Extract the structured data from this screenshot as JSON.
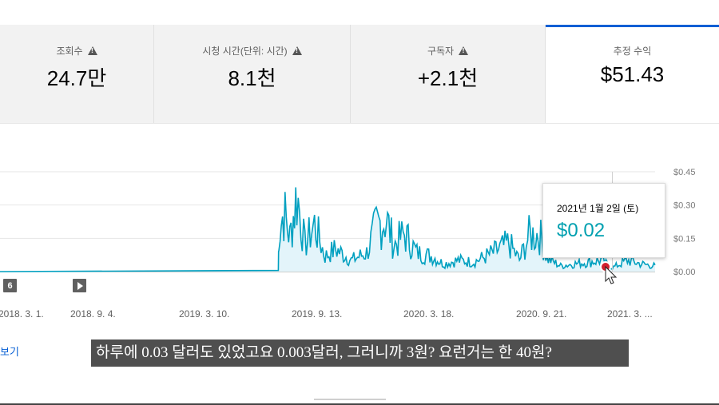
{
  "metrics": [
    {
      "label": "조회수",
      "value": "24.7만",
      "warning": true
    },
    {
      "label": "시청 시간(단위: 시간)",
      "value": "8.1천",
      "warning": true
    },
    {
      "label": "구독자",
      "value": "+2.1천",
      "warning": true
    },
    {
      "label": "추정 수익",
      "value": "$51.43",
      "warning": false,
      "selected": true
    }
  ],
  "tooltip": {
    "date": "2021년 1월 2일 (토)",
    "value": "$0.02"
  },
  "chart_controls": {
    "badge": "6"
  },
  "see_more": "보기",
  "subtitle": "하루에 0.03 달러도 있었고요 0.003달러, 그러니까 3원? 요런거는 한 40원?",
  "colors": {
    "line": "#00a0c0",
    "fill": "#e3f4fa",
    "accent": "#065fd4",
    "tooltip_value": "#00a0b0"
  },
  "chart_data": {
    "type": "area",
    "title": "",
    "y_ticks": [
      "$0.45",
      "$0.30",
      "$0.15",
      "$0.00"
    ],
    "ylim": [
      0,
      0.45
    ],
    "x_ticks": [
      "2018. 3. 1.",
      "2018. 9. 4.",
      "2019. 3. 10.",
      "2019. 9. 13.",
      "2020. 3. 18.",
      "2020. 9. 21.",
      "2021. 3. ..."
    ],
    "x_start": "2017-09-01",
    "x_end": "2021-03-28",
    "series": [
      {
        "points": [
          [
            "2017-09-01",
            0.0
          ],
          [
            "2019-03-09",
            0.0
          ],
          [
            "2019-03-10",
            0.2
          ],
          [
            "2019-03-20",
            0.32
          ],
          [
            "2019-04-01",
            0.18
          ],
          [
            "2019-04-15",
            0.41
          ],
          [
            "2019-05-01",
            0.14
          ],
          [
            "2019-05-20",
            0.25
          ],
          [
            "2019-06-10",
            0.08
          ],
          [
            "2019-07-01",
            0.12
          ],
          [
            "2019-08-01",
            0.06
          ],
          [
            "2019-09-01",
            0.1
          ],
          [
            "2019-09-20",
            0.24
          ],
          [
            "2019-10-10",
            0.28
          ],
          [
            "2019-10-25",
            0.14
          ],
          [
            "2019-11-15",
            0.2
          ],
          [
            "2019-12-10",
            0.1
          ],
          [
            "2020-01-10",
            0.08
          ],
          [
            "2020-02-01",
            0.04
          ],
          [
            "2020-03-01",
            0.06
          ],
          [
            "2020-04-01",
            0.05
          ],
          [
            "2020-05-10",
            0.1
          ],
          [
            "2020-06-10",
            0.15
          ],
          [
            "2020-07-01",
            0.06
          ],
          [
            "2020-07-20",
            0.19
          ],
          [
            "2020-08-10",
            0.2
          ],
          [
            "2020-08-25",
            0.07
          ],
          [
            "2020-09-21",
            0.03
          ],
          [
            "2020-10-15",
            0.04
          ],
          [
            "2020-11-15",
            0.05
          ],
          [
            "2020-12-10",
            0.06
          ],
          [
            "2021-01-02",
            0.02
          ],
          [
            "2021-02-01",
            0.06
          ],
          [
            "2021-03-01",
            0.04
          ],
          [
            "2021-03-28",
            0.03
          ]
        ]
      }
    ]
  }
}
